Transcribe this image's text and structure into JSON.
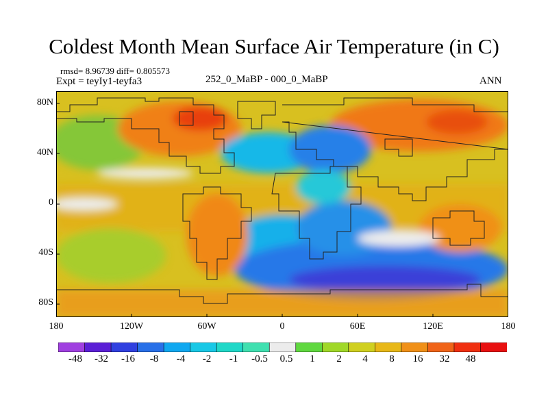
{
  "title": "Coldest Month Mean Surface Air Temperature (in C)",
  "stats_line": "rmsd= 8.96739 diff= 0.805573",
  "experiment_line": "Expt = teyIy1-teyfa3",
  "subtitle": "252_0_MaBP - 000_0_MaBP",
  "season": "ANN",
  "map": {
    "projection": "cylindrical equidistant",
    "lon_range": [
      -180,
      180
    ],
    "lat_range": [
      -90,
      90
    ],
    "lat_ticks": [
      "80N",
      "40N",
      "0",
      "40S",
      "80S"
    ],
    "lon_ticks": [
      "180",
      "120W",
      "60W",
      "0",
      "60E",
      "120E",
      "180"
    ]
  },
  "colorbar": {
    "labels": [
      "-48",
      "-32",
      "-16",
      "-8",
      "-4",
      "-2",
      "-1",
      "-0.5",
      "0.5",
      "1",
      "2",
      "4",
      "8",
      "16",
      "32",
      "48"
    ],
    "colors": [
      "#a040e0",
      "#5b1fd6",
      "#3040e0",
      "#2870e8",
      "#10a8f0",
      "#18c8e6",
      "#20d8c8",
      "#40e0b0",
      "#ececec",
      "#60d840",
      "#a0d828",
      "#d0d020",
      "#e8b818",
      "#f09018",
      "#f06418",
      "#f03010",
      "#e81010"
    ]
  },
  "style": {
    "ocean_base": "#d8c020",
    "coast_color": "#222222"
  }
}
